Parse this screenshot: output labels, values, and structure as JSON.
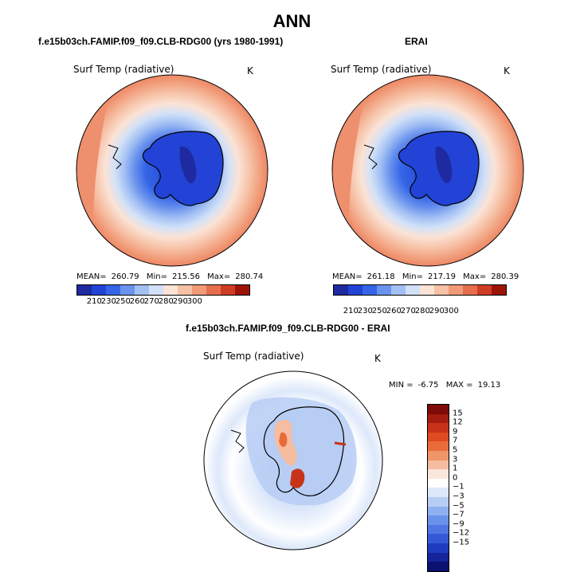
{
  "figure": {
    "title": "ANN"
  },
  "chart_data": [
    {
      "type": "heatmap",
      "panel": "model",
      "title": "f.e15b03ch.FAMIP.f09_f09.CLB-RDG00 (yrs 1980-1991)",
      "variable": "Surf Temp (radiative)",
      "units": "K",
      "mean_label": "MEAN=",
      "mean": "260.79",
      "min_label": "Min=",
      "min": "215.56",
      "max_label": "Max=",
      "max": "280.74",
      "colorbar_ticks": [
        "210",
        "230",
        "250",
        "260",
        "270",
        "280",
        "290",
        "300"
      ],
      "projection": "south polar stereographic"
    },
    {
      "type": "heatmap",
      "panel": "observations",
      "title": "ERAI",
      "variable": "Surf Temp (radiative)",
      "units": "K",
      "mean_label": "MEAN=",
      "mean": "261.18",
      "min_label": "Min=",
      "min": "217.19",
      "max_label": "Max=",
      "max": "280.39",
      "colorbar_ticks": [
        "210",
        "230",
        "250",
        "260",
        "270",
        "280",
        "290",
        "300"
      ],
      "projection": "south polar stereographic"
    },
    {
      "type": "heatmap",
      "panel": "difference",
      "title": "f.e15b03ch.FAMIP.f09_f09.CLB-RDG00 - ERAI",
      "variable": "Surf Temp (radiative)",
      "units": "K",
      "min_label": "MIN =",
      "min": "-6.75",
      "max_label": "MAX =",
      "max": "19.13",
      "colorbar_ticks": [
        "15",
        "12",
        "9",
        "7",
        "5",
        "3",
        "1",
        "0",
        "−1",
        "−3",
        "−5",
        "−7",
        "−9",
        "−12",
        "−15"
      ],
      "projection": "south polar stereographic"
    }
  ],
  "colors": {
    "abs_scale": [
      "#1f2aa0",
      "#2243d6",
      "#3565e6",
      "#6a93ee",
      "#a3c0f3",
      "#d2e1f8",
      "#fbe3d6",
      "#f6c1a6",
      "#f19a77",
      "#e66e4d",
      "#cf3d25",
      "#9c1408"
    ],
    "diff_scale": [
      "#7e0a0a",
      "#a51c10",
      "#c73319",
      "#df4a22",
      "#ea6b3a",
      "#f09567",
      "#f6bda0",
      "#fbe6dc",
      "#ffffff",
      "#dde8fa",
      "#b7cdf4",
      "#8fb0ef",
      "#6b92ea",
      "#4f76e2",
      "#3559d6",
      "#1f3cbf",
      "#15249a",
      "#0b1170"
    ]
  }
}
